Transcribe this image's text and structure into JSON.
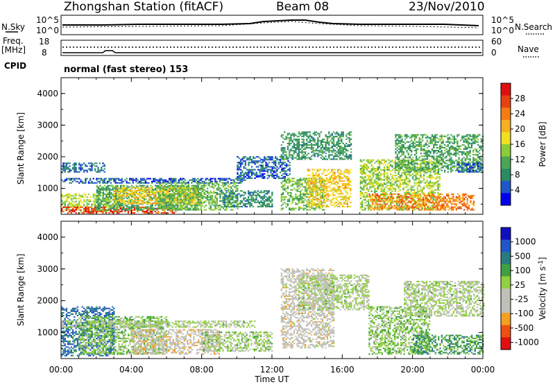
{
  "header": {
    "station": "Zhongshan Station (fitACF)",
    "beam": "Beam 08",
    "date": "23/Nov/2010"
  },
  "status_panel": {
    "nsky_label": "N.Sky",
    "nsky_ticks": [
      "10^5",
      "10^0"
    ],
    "nsearch_label": "N.Search",
    "nsearch_ticks": [
      "10^5",
      "10^0"
    ],
    "freq_label": "Freq.",
    "freq_unit": "[MHz]",
    "freq_ticks": [
      "18",
      "8"
    ],
    "nave_label": "Nave",
    "nave_ticks": [
      "60",
      "0"
    ],
    "cpid_label": "CPID",
    "cpid_value": "normal (fast stereo) 153"
  },
  "chart_data": [
    {
      "type": "heatmap",
      "name": "power",
      "ylabel": "Slant Range [km]",
      "yticks": [
        "4000",
        "3000",
        "2000",
        "1000"
      ],
      "ylim": [
        180,
        4500
      ],
      "xlim_hours": [
        0,
        24
      ],
      "colorbar": {
        "label": "Power [dB]",
        "ticks": [
          "28",
          "24",
          "20",
          "16",
          "12",
          "8",
          "4"
        ],
        "tick_values": [
          28,
          24,
          20,
          16,
          12,
          8,
          4
        ],
        "range": [
          0,
          30
        ],
        "colors": [
          "#0000ee",
          "#1f57c8",
          "#2a8a64",
          "#4aa556",
          "#8ccc38",
          "#f0e020",
          "#f6b020",
          "#f47c12",
          "#e84010",
          "#e01010"
        ]
      },
      "regions": [
        {
          "t0": 0.0,
          "t1": 3.5,
          "r0": 250,
          "r1": 800,
          "v": 14
        },
        {
          "t0": 0.0,
          "t1": 6.5,
          "r0": 200,
          "r1": 420,
          "v": 26
        },
        {
          "t0": 0.0,
          "t1": 2.5,
          "r0": 1500,
          "r1": 1800,
          "v": 6
        },
        {
          "t0": 0.0,
          "t1": 10.5,
          "r0": 1150,
          "r1": 1300,
          "v": 5
        },
        {
          "t0": 2.0,
          "t1": 8.0,
          "r0": 300,
          "r1": 1100,
          "v": 10
        },
        {
          "t0": 3.0,
          "t1": 8.0,
          "r0": 500,
          "r1": 1000,
          "v": 18
        },
        {
          "t0": 5.5,
          "t1": 10.0,
          "r0": 300,
          "r1": 1200,
          "v": 12
        },
        {
          "t0": 9.0,
          "t1": 12.0,
          "r0": 400,
          "r1": 900,
          "v": 8
        },
        {
          "t0": 10.0,
          "t1": 13.0,
          "r0": 1300,
          "r1": 2000,
          "v": 5
        },
        {
          "t0": 12.5,
          "t1": 15.0,
          "r0": 300,
          "r1": 1300,
          "v": 12
        },
        {
          "t0": 12.5,
          "t1": 16.5,
          "r0": 1900,
          "r1": 2800,
          "v": 9
        },
        {
          "t0": 14.0,
          "t1": 16.5,
          "r0": 400,
          "r1": 1600,
          "v": 18
        },
        {
          "t0": 17.0,
          "t1": 21.5,
          "r0": 300,
          "r1": 1900,
          "v": 14
        },
        {
          "t0": 19.0,
          "t1": 24.0,
          "r0": 1500,
          "r1": 2700,
          "v": 10
        },
        {
          "t0": 17.5,
          "t1": 23.5,
          "r0": 300,
          "r1": 800,
          "v": 22
        },
        {
          "t0": 22.5,
          "t1": 24.0,
          "r0": 1500,
          "r1": 1800,
          "v": 5
        }
      ]
    },
    {
      "type": "heatmap",
      "name": "velocity",
      "ylabel": "Slant Range [km]",
      "yticks": [
        "4000",
        "3000",
        "2000",
        "1000"
      ],
      "ylim": [
        180,
        4500
      ],
      "xlim_hours": [
        0,
        24
      ],
      "xticks": [
        "00:00",
        "04:00",
        "08:00",
        "12:00",
        "16:00",
        "20:00",
        "00:00"
      ],
      "xlabel": "Time UT",
      "colorbar": {
        "label": "Velocity [m s^-1]",
        "ticks": [
          "1000",
          "500",
          "100",
          "25",
          "-25",
          "-100",
          "-500",
          "-1000"
        ],
        "tick_values": [
          1000,
          500,
          100,
          25,
          -25,
          -100,
          -500,
          -1000
        ],
        "range": [
          -1200,
          1200
        ],
        "colors": [
          "#e01010",
          "#ee5010",
          "#f4a020",
          "#c0c0b8",
          "#c0c0b8",
          "#90d040",
          "#40a040",
          "#2a7a80",
          "#1f57c8",
          "#1010c0"
        ]
      },
      "regions": [
        {
          "t0": 0.0,
          "t1": 3.0,
          "r0": 250,
          "r1": 1800,
          "v": 700
        },
        {
          "t0": 1.0,
          "t1": 6.0,
          "r0": 300,
          "r1": 1500,
          "v": 150
        },
        {
          "t0": 0.0,
          "t1": 11.0,
          "r0": 1150,
          "r1": 1350,
          "v": 0
        },
        {
          "t0": 4.0,
          "t1": 9.0,
          "r0": 300,
          "r1": 1100,
          "v": -300
        },
        {
          "t0": 8.0,
          "t1": 12.0,
          "r0": 400,
          "r1": 1000,
          "v": 60
        },
        {
          "t0": 12.5,
          "t1": 15.5,
          "r0": 500,
          "r1": 3000,
          "v": -250
        },
        {
          "t0": 13.5,
          "t1": 17.5,
          "r0": 1700,
          "r1": 2800,
          "v": 0
        },
        {
          "t0": 17.5,
          "t1": 21.0,
          "r0": 300,
          "r1": 1800,
          "v": 150
        },
        {
          "t0": 19.5,
          "t1": 24.0,
          "r0": 1500,
          "r1": 2600,
          "v": 0
        },
        {
          "t0": 20.0,
          "t1": 24.0,
          "r0": 300,
          "r1": 900,
          "v": 400
        }
      ]
    }
  ]
}
